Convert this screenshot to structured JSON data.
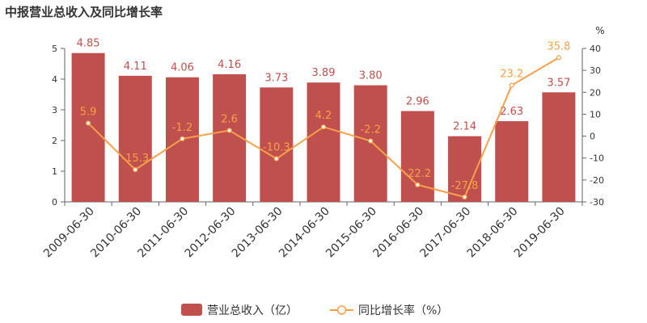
{
  "title": "中报营业总收入及同比增长率",
  "colors": {
    "bar": "#c0504d",
    "line": "#f7a04b",
    "axis": "#666666",
    "text": "#333333"
  },
  "chart_data": {
    "type": "bar",
    "title": "中报营业总收入及同比增长率",
    "categories": [
      "2009-06-30",
      "2010-06-30",
      "2011-06-30",
      "2012-06-30",
      "2013-06-30",
      "2014-06-30",
      "2015-06-30",
      "2016-06-30",
      "2017-06-30",
      "2018-06-30",
      "2019-06-30"
    ],
    "series": [
      {
        "name": "营业总收入（亿）",
        "type": "bar",
        "axis": "left",
        "values": [
          4.85,
          4.11,
          4.06,
          4.16,
          3.73,
          3.89,
          3.8,
          2.96,
          2.14,
          2.63,
          3.57
        ]
      },
      {
        "name": "同比增长率（%）",
        "type": "line",
        "axis": "right",
        "values": [
          5.9,
          -15.3,
          -1.2,
          2.6,
          -10.3,
          4.2,
          -2.2,
          -22.2,
          -27.8,
          23.2,
          35.8
        ]
      }
    ],
    "left_axis": {
      "ylim": [
        0,
        5
      ],
      "ticks": [
        0,
        1,
        2,
        3,
        4,
        5
      ]
    },
    "right_axis": {
      "unit": "%",
      "ylim": [
        -30,
        40
      ],
      "ticks": [
        -30,
        -20,
        -10,
        0,
        10,
        20,
        30,
        40
      ]
    },
    "legend": "bottom-center",
    "grid": false
  }
}
